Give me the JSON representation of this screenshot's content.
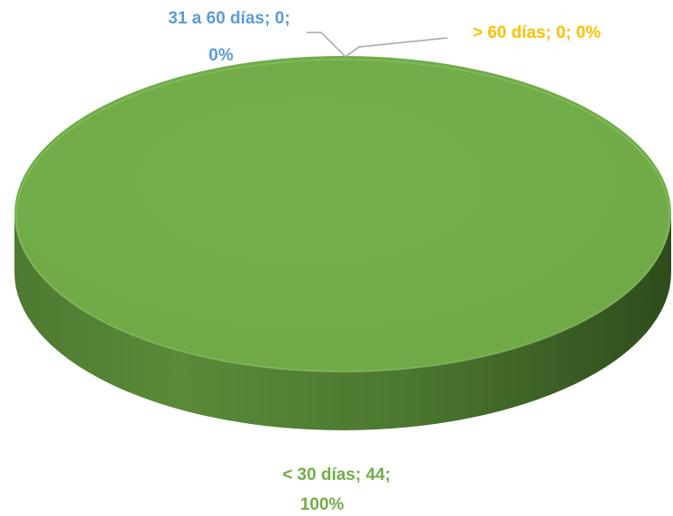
{
  "chart_data": {
    "type": "pie",
    "title": "",
    "series": [
      {
        "slices": [
          {
            "category": "< 30 días",
            "value": 44,
            "percent": "100%",
            "color": "#70ad47",
            "label_line1": "< 30 días; 44;",
            "label_line2": "100%"
          },
          {
            "category": "31 a 60 días",
            "value": 0,
            "percent": "0%",
            "color": "#5b9bd5",
            "label_line1": "31 a 60 días; 0;",
            "label_line2": "0%"
          },
          {
            "category": "> 60 días",
            "value": 0,
            "percent": "0%",
            "color": "#ffc000",
            "label_line1": "> 60 días; 0; 0%",
            "label_line2": ""
          }
        ]
      }
    ],
    "style": "3d-pie"
  }
}
